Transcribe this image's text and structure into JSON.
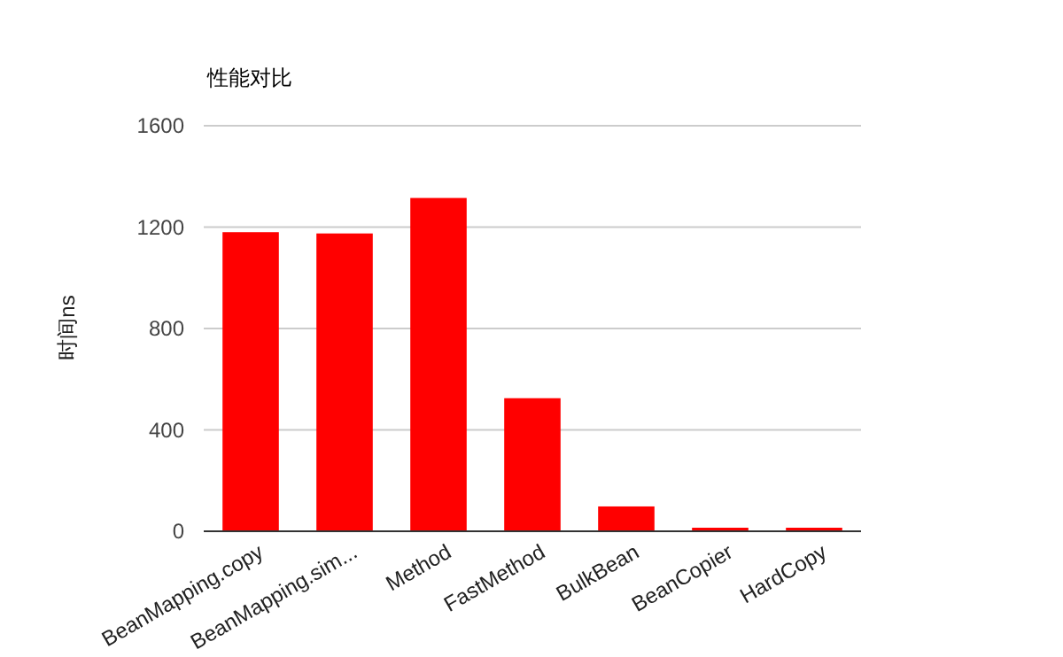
{
  "chart_data": {
    "type": "bar",
    "title": "性能对比",
    "ylabel": "时间ns",
    "categories": [
      "BeanMapping.copy",
      "BeanMapping.sim...",
      "Method",
      "FastMethod",
      "BulkBean",
      "BeanCopier",
      "HardCopy"
    ],
    "values": [
      1180,
      1175,
      1315,
      525,
      98,
      14,
      14
    ],
    "color": "#ff0000",
    "ylim": [
      0,
      1600
    ],
    "yticks": [
      0,
      400,
      800,
      1200,
      1600
    ],
    "grid": "y"
  }
}
